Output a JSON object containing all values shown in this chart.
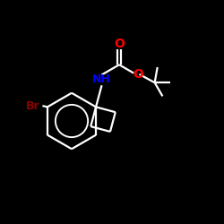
{
  "background_color": "#000000",
  "bond_color": "#ffffff",
  "atom_colors": {
    "O": "#ff0000",
    "N": "#0000ff",
    "Br": "#8b0000",
    "C": "#ffffff"
  },
  "figsize": [
    2.5,
    2.5
  ],
  "dpi": 100,
  "lw": 1.6
}
